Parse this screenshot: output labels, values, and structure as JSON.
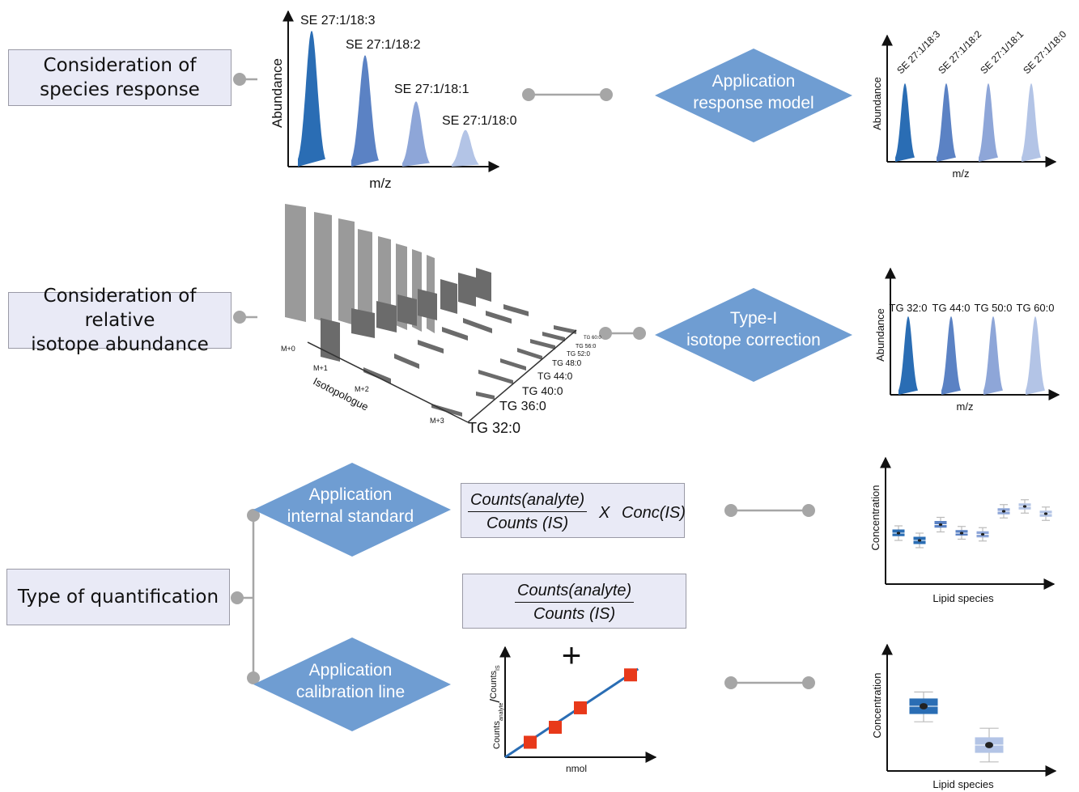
{
  "colors": {
    "c1": "#2a6db4",
    "c2": "#5b82c4",
    "c3": "#8ea6d8",
    "c4": "#b3c4e6",
    "diamond": "#6f9dd2",
    "connector": "#a6a6a6",
    "box_fill": "#e9eaf6",
    "marker": "#e8391a"
  },
  "left_boxes": {
    "species": {
      "line1": "Consideration of",
      "line2": "species response"
    },
    "isotope": {
      "line1": "Consideration of relative",
      "line2": "isotope abundance"
    },
    "quant": {
      "label": "Type of quantification"
    }
  },
  "diamonds": {
    "response_model": {
      "line1": "Application",
      "line2": "response model"
    },
    "isotope_correction": {
      "line1": "Type-I",
      "line2": "isotope correction"
    },
    "internal_standard": {
      "line1": "Application",
      "line2": "internal standard"
    },
    "calibration_line": {
      "line1": "Application",
      "line2": "calibration line"
    }
  },
  "spectrum_top": {
    "ylabel": "Abundance",
    "xlabel": "m/z",
    "peaks": [
      {
        "label": "SE 27:1/18:3",
        "height": 1.0
      },
      {
        "label": "SE 27:1/18:2",
        "height": 0.82
      },
      {
        "label": "SE 27:1/18:1",
        "height": 0.48
      },
      {
        "label": "SE 27:1/18:0",
        "height": 0.27
      }
    ]
  },
  "spectrum_top_right": {
    "ylabel": "Abundance",
    "xlabel": "m/z",
    "labels": [
      "SE 27:1/18:3",
      "SE 27:1/18:2",
      "SE 27:1/18:1",
      "SE 27:1/18:0"
    ]
  },
  "spectrum_mid_right": {
    "ylabel": "Abundance",
    "xlabel": "m/z",
    "labels": [
      "TG 32:0",
      "TG 44:0",
      "TG 50:0",
      "TG 60:0"
    ]
  },
  "isotope_3d": {
    "axis_label": "Isotopologue",
    "isotopologues": [
      "M+0",
      "M+1",
      "M+2",
      "M+3"
    ],
    "species": [
      "TG 32:0",
      "TG 36:0",
      "TG 40:0",
      "TG 44:0",
      "TG 48:0",
      "TG 52:0",
      "TG 56:0",
      "TG 60:0"
    ]
  },
  "formulas": {
    "internal_standard": {
      "numerator": "Counts(analyte)",
      "denominator": "Counts (IS)",
      "operator": "X",
      "factor": "Conc(IS)"
    },
    "calibration": {
      "numerator": "Counts(analyte)",
      "denominator": "Counts (IS)"
    },
    "plus": "+"
  },
  "calibration_plot": {
    "xlabel": "nmol",
    "ylabel_a": "Counts",
    "ylabel_a_sub": "analyte",
    "ylabel_slash": "/",
    "ylabel_b": "Counts",
    "ylabel_b_sub": "IS",
    "points": [
      [
        1,
        1
      ],
      [
        2,
        2
      ],
      [
        3,
        3.3
      ],
      [
        5,
        5.5
      ]
    ],
    "line": [
      [
        0,
        0
      ],
      [
        5.3,
        5.9
      ]
    ]
  },
  "box_plot_1": {
    "ylabel": "Concentration",
    "xlabel": "Lipid species",
    "boxes": [
      {
        "med": 4.2,
        "q1": 3.95,
        "q3": 4.5,
        "lo": 3.6,
        "hi": 4.8,
        "shade": 1
      },
      {
        "med": 3.6,
        "q1": 3.3,
        "q3": 3.9,
        "lo": 3.0,
        "hi": 4.2,
        "shade": 1
      },
      {
        "med": 4.9,
        "q1": 4.65,
        "q3": 5.2,
        "lo": 4.3,
        "hi": 5.5,
        "shade": 2
      },
      {
        "med": 4.2,
        "q1": 4.0,
        "q3": 4.45,
        "lo": 3.7,
        "hi": 4.75,
        "shade": 2
      },
      {
        "med": 4.1,
        "q1": 3.85,
        "q3": 4.35,
        "lo": 3.55,
        "hi": 4.65,
        "shade": 3
      },
      {
        "med": 6.0,
        "q1": 5.75,
        "q3": 6.25,
        "lo": 5.45,
        "hi": 6.55,
        "shade": 3
      },
      {
        "med": 6.4,
        "q1": 6.15,
        "q3": 6.65,
        "lo": 5.85,
        "hi": 6.95,
        "shade": 4
      },
      {
        "med": 5.8,
        "q1": 5.55,
        "q3": 6.05,
        "lo": 5.25,
        "hi": 6.35,
        "shade": 4
      }
    ]
  },
  "box_plot_2": {
    "ylabel": "Concentration",
    "xlabel": "Lipid species",
    "boxes": [
      {
        "med": 5.0,
        "q1": 4.4,
        "q3": 5.6,
        "lo": 3.8,
        "hi": 6.1,
        "shade": 1
      },
      {
        "med": 2.0,
        "q1": 1.4,
        "q3": 2.6,
        "lo": 0.7,
        "hi": 3.3,
        "shade": 4
      }
    ]
  }
}
